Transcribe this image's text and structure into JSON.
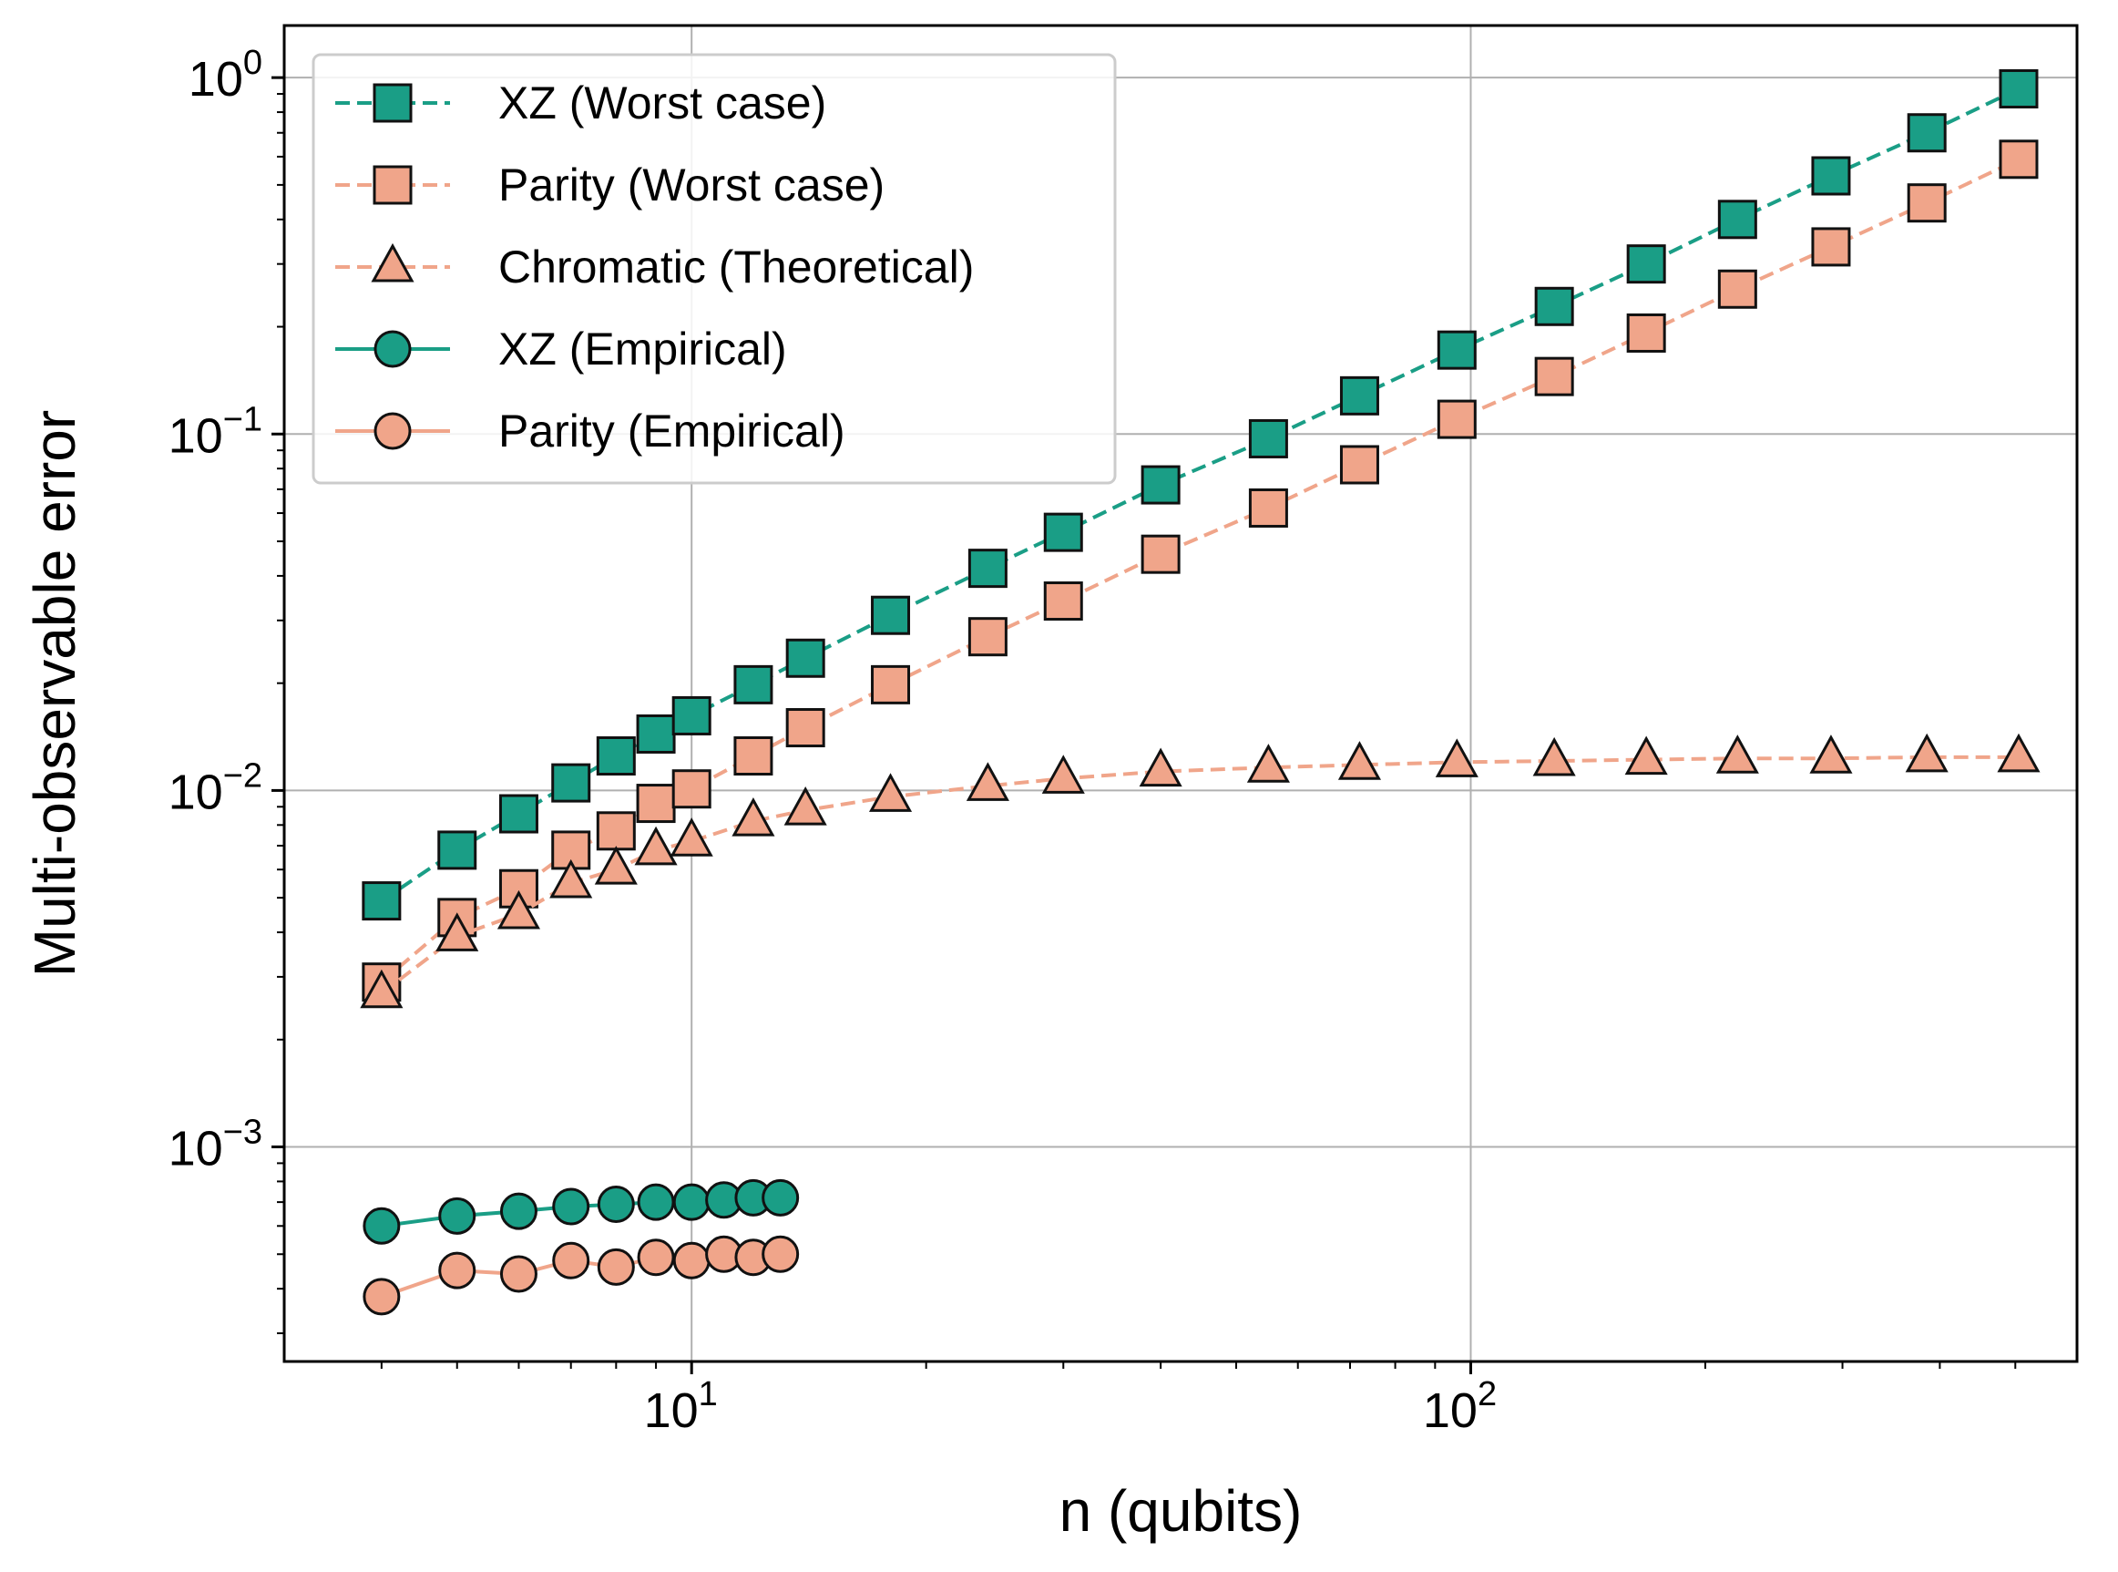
{
  "chart_data": {
    "type": "line",
    "xlabel": "n (qubits)",
    "ylabel": "Multi-observable error",
    "xscale": "log",
    "yscale": "log",
    "xlim": [
      3.0,
      600
    ],
    "ylim": [
      0.00025,
      1.4
    ],
    "grid": true,
    "legend_position": "top-left",
    "x_ticks": [
      {
        "value": 10,
        "base": "10",
        "exp": "1"
      },
      {
        "value": 100,
        "base": "10",
        "exp": "2"
      }
    ],
    "y_ticks": [
      {
        "value": 1,
        "base": "10",
        "exp": "0"
      },
      {
        "value": 0.1,
        "base": "10",
        "exp": "−1"
      },
      {
        "value": 0.01,
        "base": "10",
        "exp": "−2"
      },
      {
        "value": 0.001,
        "base": "10",
        "exp": "−3"
      }
    ],
    "series": [
      {
        "name": "XZ (Worst case)",
        "color": "#1a9e86",
        "linestyle": "dashed",
        "marker": "square",
        "x": [
          4,
          5,
          6,
          7,
          8,
          9,
          10,
          12,
          14,
          18,
          24,
          30,
          40,
          55,
          72,
          96,
          128,
          168,
          220,
          290,
          385,
          505
        ],
        "y": [
          0.0049,
          0.0068,
          0.0086,
          0.0105,
          0.0125,
          0.0144,
          0.0162,
          0.0198,
          0.0235,
          0.031,
          0.042,
          0.053,
          0.072,
          0.097,
          0.128,
          0.172,
          0.228,
          0.3,
          0.4,
          0.53,
          0.7,
          0.93
        ]
      },
      {
        "name": "Parity (Worst case)",
        "color": "#f0a58a",
        "linestyle": "dashed",
        "marker": "square",
        "x": [
          4,
          5,
          6,
          7,
          8,
          9,
          10,
          12,
          14,
          18,
          24,
          30,
          40,
          55,
          72,
          96,
          128,
          168,
          220,
          290,
          385,
          505
        ],
        "y": [
          0.0029,
          0.0044,
          0.0053,
          0.0068,
          0.0077,
          0.0092,
          0.0101,
          0.0125,
          0.015,
          0.0198,
          0.027,
          0.034,
          0.046,
          0.062,
          0.082,
          0.11,
          0.145,
          0.192,
          0.255,
          0.335,
          0.445,
          0.59
        ]
      },
      {
        "name": "Chromatic (Theoretical)",
        "color": "#f0a58a",
        "linestyle": "dashed",
        "marker": "triangle",
        "x": [
          4,
          5,
          6,
          7,
          8,
          9,
          10,
          12,
          14,
          18,
          24,
          30,
          40,
          55,
          72,
          96,
          128,
          168,
          220,
          290,
          385,
          505
        ],
        "y": [
          0.0027,
          0.0039,
          0.0045,
          0.0055,
          0.006,
          0.0068,
          0.0072,
          0.0082,
          0.0088,
          0.0096,
          0.0103,
          0.0108,
          0.0113,
          0.0116,
          0.0118,
          0.012,
          0.0121,
          0.0122,
          0.0123,
          0.0123,
          0.0124,
          0.0124
        ]
      },
      {
        "name": "XZ (Empirical)",
        "color": "#1a9e86",
        "linestyle": "solid",
        "marker": "circle",
        "x": [
          4,
          5,
          6,
          7,
          8,
          9,
          10,
          11,
          12,
          13
        ],
        "y": [
          0.0006,
          0.00064,
          0.00066,
          0.00068,
          0.00069,
          0.0007,
          0.0007,
          0.00071,
          0.00072,
          0.00072
        ]
      },
      {
        "name": "Parity (Empirical)",
        "color": "#f0a58a",
        "linestyle": "solid",
        "marker": "circle",
        "x": [
          4,
          5,
          6,
          7,
          8,
          9,
          10,
          11,
          12,
          13
        ],
        "y": [
          0.00038,
          0.00045,
          0.00044,
          0.00048,
          0.00046,
          0.00049,
          0.00048,
          0.0005,
          0.00049,
          0.0005
        ]
      }
    ]
  }
}
